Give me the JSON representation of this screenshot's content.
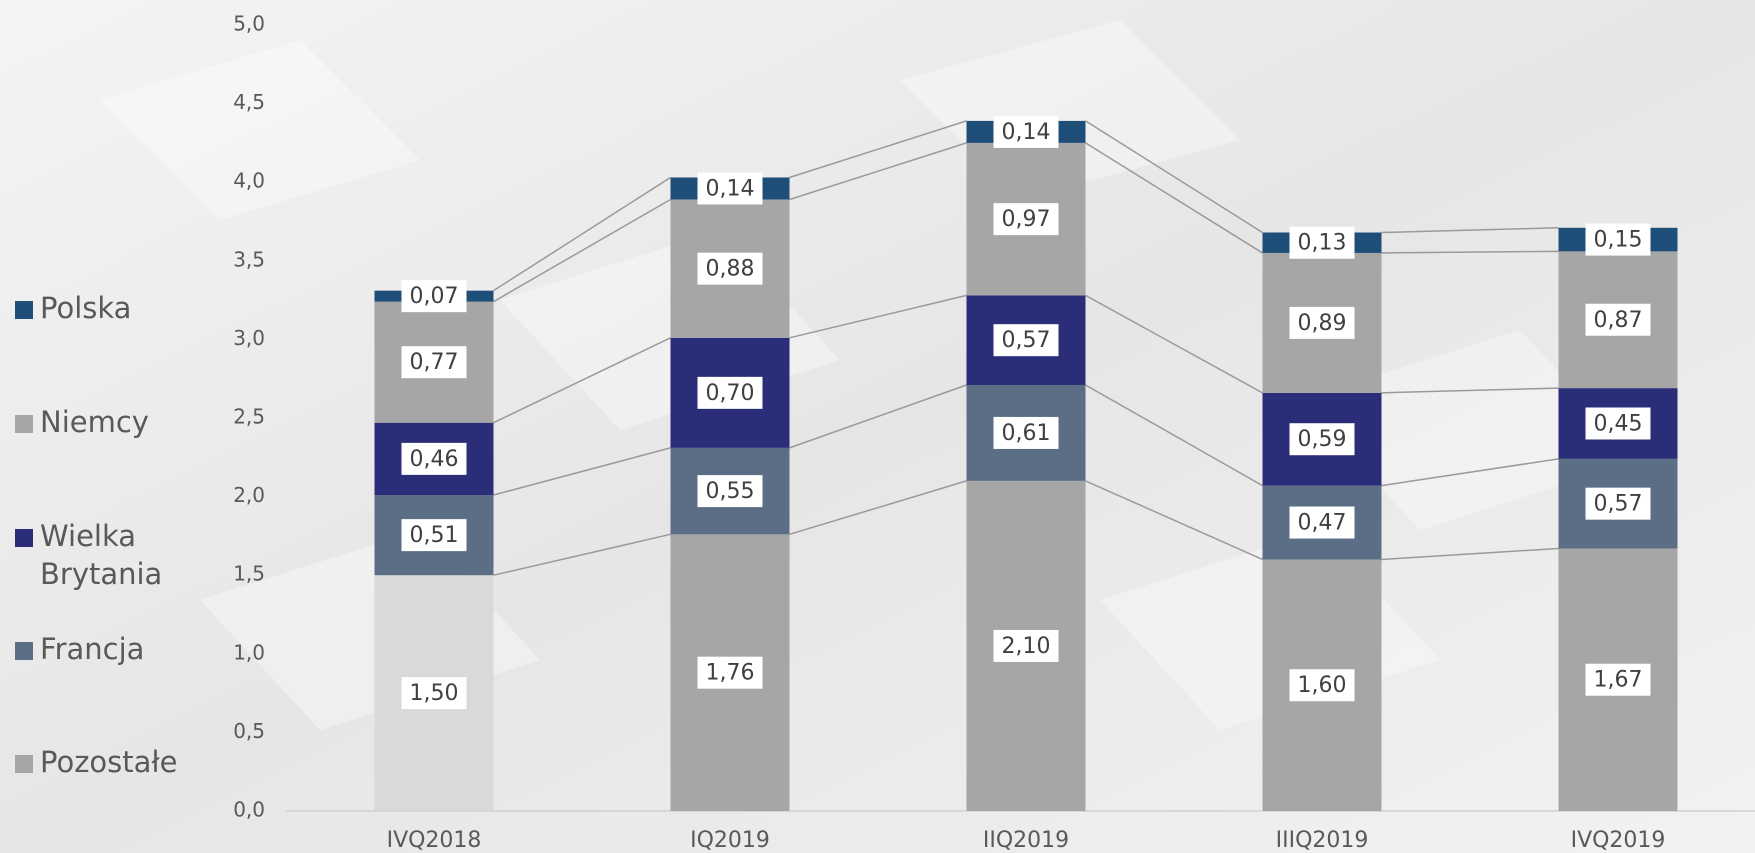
{
  "chart_data": {
    "type": "stacked-bar",
    "categories": [
      "IVQ2018",
      "IQ2019",
      "IIQ2019",
      "IIIQ2019",
      "IVQ2019"
    ],
    "series": [
      {
        "name": "Pozostałe",
        "color": "#a6a6a6",
        "colors": [
          "#d9d9d9",
          "#a6a6a6",
          "#a6a6a6",
          "#a6a6a6",
          "#a6a6a6"
        ],
        "values": [
          1.5,
          1.76,
          2.1,
          1.6,
          1.67
        ],
        "value_labels": [
          "1,50",
          "1,76",
          "2,10",
          "1,60",
          "1,67"
        ]
      },
      {
        "name": "Francja",
        "color": "#5b6e86",
        "values": [
          0.51,
          0.55,
          0.61,
          0.47,
          0.57
        ],
        "value_labels": [
          "0,51",
          "0,55",
          "0,61",
          "0,47",
          "0,57"
        ]
      },
      {
        "name": "Wielka Brytania",
        "color": "#2a2e78",
        "values": [
          0.46,
          0.7,
          0.57,
          0.59,
          0.45
        ],
        "value_labels": [
          "0,46",
          "0,70",
          "0,57",
          "0,59",
          "0,45"
        ]
      },
      {
        "name": "Niemcy",
        "color": "#a6a6a6",
        "values": [
          0.77,
          0.88,
          0.97,
          0.89,
          0.87
        ],
        "value_labels": [
          "0,77",
          "0,88",
          "0,97",
          "0,89",
          "0,87"
        ]
      },
      {
        "name": "Polska",
        "color": "#1f4e79",
        "values": [
          0.07,
          0.14,
          0.14,
          0.13,
          0.15
        ],
        "value_labels": [
          "0,07",
          "0,14",
          "0,14",
          "0,13",
          "0,15"
        ]
      }
    ],
    "ylim": [
      0,
      5
    ],
    "yticks": [
      {
        "value": 0,
        "label": "0,0"
      },
      {
        "value": 0.5,
        "label": "0,5"
      },
      {
        "value": 1,
        "label": "1,0"
      },
      {
        "value": 1.5,
        "label": "1,5"
      },
      {
        "value": 2,
        "label": "2,0"
      },
      {
        "value": 2.5,
        "label": "2,5"
      },
      {
        "value": 3,
        "label": "3,0"
      },
      {
        "value": 3.5,
        "label": "3,5"
      },
      {
        "value": 4,
        "label": "4,0"
      },
      {
        "value": 4.5,
        "label": "4,5"
      },
      {
        "value": 5,
        "label": "5,0"
      }
    ],
    "legend": "left",
    "series_lines": true
  }
}
